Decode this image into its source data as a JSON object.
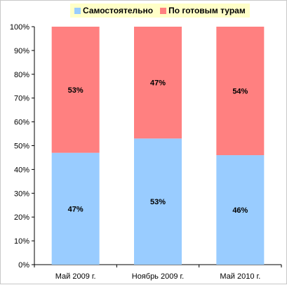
{
  "chart_data": {
    "type": "bar",
    "stacked": true,
    "categories": [
      "Май 2009 г.",
      "Ноябрь 2009 г.",
      "Май 2010 г."
    ],
    "series": [
      {
        "name": "Самостоятельно",
        "values": [
          47,
          53,
          46
        ],
        "labels": [
          "47%",
          "53%",
          "46%"
        ],
        "color": "#99ccff"
      },
      {
        "name": "По готовым турам",
        "values": [
          53,
          47,
          54
        ],
        "labels": [
          "53%",
          "47%",
          "54%"
        ],
        "color": "#ff8080"
      }
    ],
    "yticks": [
      "0%",
      "10%",
      "20%",
      "30%",
      "40%",
      "50%",
      "60%",
      "70%",
      "80%",
      "90%",
      "100%"
    ],
    "ylim": [
      0,
      100
    ],
    "legend_position": "top",
    "grid": false
  }
}
